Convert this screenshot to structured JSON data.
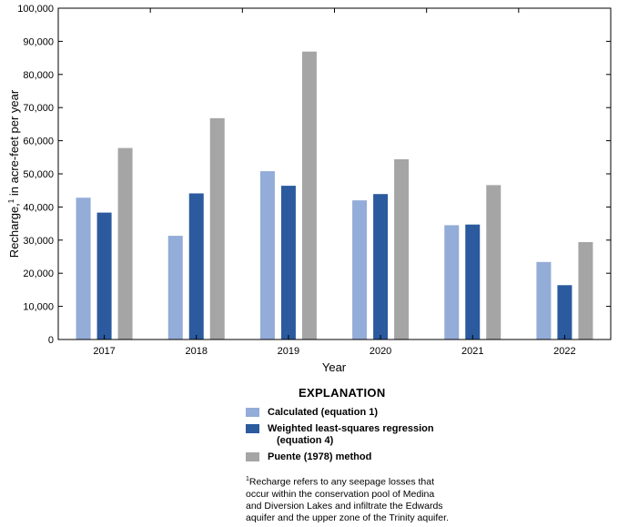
{
  "chart_data": {
    "type": "bar",
    "categories": [
      "2017",
      "2018",
      "2019",
      "2020",
      "2021",
      "2022"
    ],
    "series": [
      {
        "name": "Calculated (equation 1)",
        "color": "#93acd8",
        "values": [
          42800,
          31300,
          50800,
          42000,
          34500,
          23400
        ]
      },
      {
        "name": "Weighted least-squares regression (equation 4)",
        "color": "#2b5a9e",
        "values": [
          38300,
          44100,
          46400,
          43900,
          34700,
          16400
        ]
      },
      {
        "name": "Puente (1978) method",
        "color": "#a5a5a5",
        "values": [
          57800,
          66800,
          86900,
          54400,
          46600,
          29400
        ]
      }
    ],
    "xlabel": "Year",
    "ylabel": {
      "prefix": "Recharge,",
      "sup": "1",
      "suffix": " in acre-feet per year"
    },
    "ylim": [
      0,
      100000
    ],
    "yticks": [
      0,
      10000,
      20000,
      30000,
      40000,
      50000,
      60000,
      70000,
      80000,
      90000,
      100000
    ],
    "ytick_labels": [
      "0",
      "10,000",
      "20,000",
      "30,000",
      "40,000",
      "50,000",
      "60,000",
      "70,000",
      "80,000",
      "90,000",
      "100,000"
    ],
    "grid": false,
    "legend_placement": "below"
  },
  "legend": {
    "title": "EXPLANATION",
    "items": [
      {
        "line1": "Calculated (equation 1)",
        "line2": ""
      },
      {
        "line1": "Weighted least-squares regression",
        "line2": "(equation 4)"
      },
      {
        "line1": "Puente (1978) method",
        "line2": ""
      }
    ]
  },
  "footnote": {
    "marker": "1",
    "lines": [
      "Recharge refers to any seepage losses that",
      "occur within the conservation pool of Medina",
      "and Diversion Lakes and infiltrate the Edwards",
      "aquifer and the upper zone of the Trinity aquifer."
    ]
  }
}
